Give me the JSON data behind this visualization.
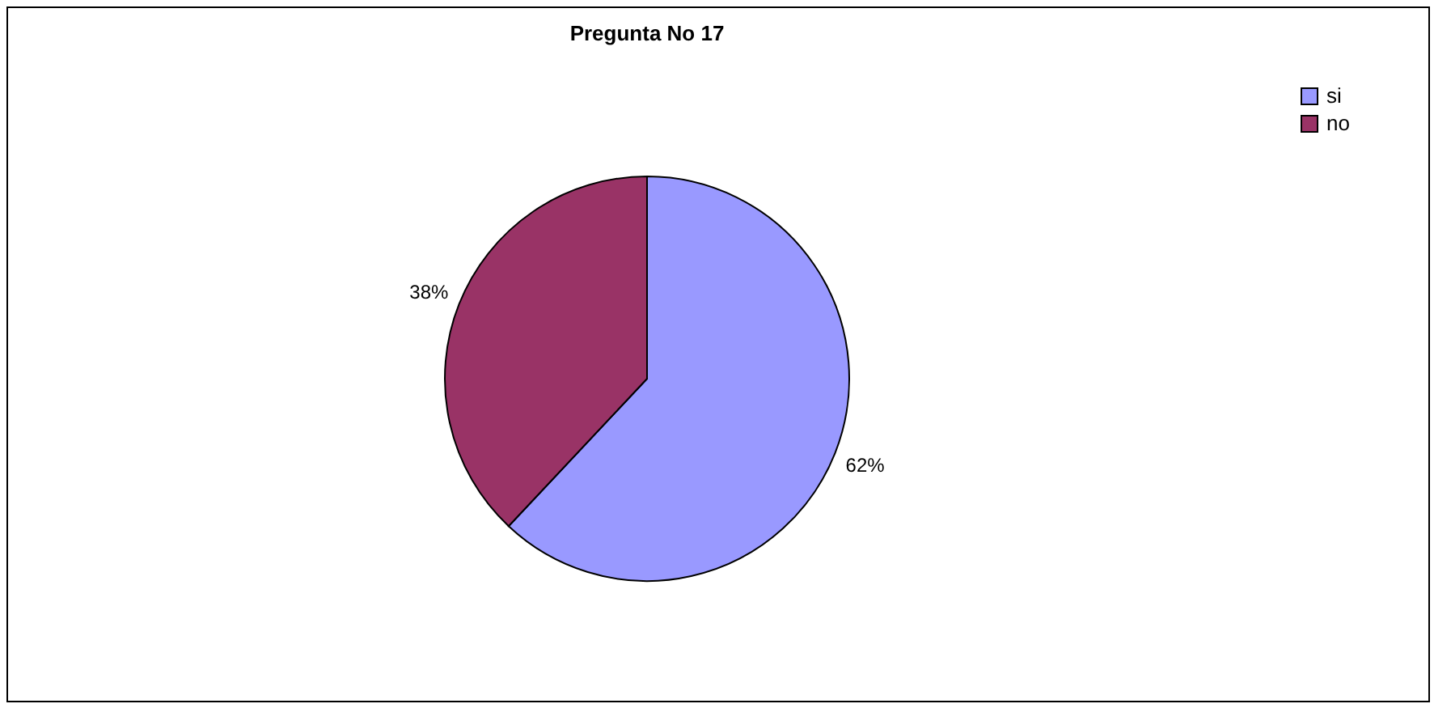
{
  "chart_data": {
    "type": "pie",
    "title": "Pregunta No 17",
    "categories": [
      "si",
      "no"
    ],
    "values": [
      62,
      38
    ],
    "colors": [
      "#9999ff",
      "#993366"
    ],
    "value_labels": [
      "62%",
      "38%"
    ],
    "legend": "right"
  }
}
